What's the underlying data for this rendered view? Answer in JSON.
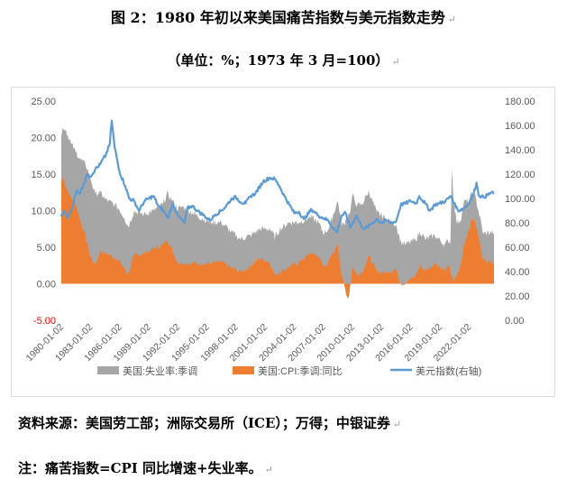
{
  "header": {
    "title": "图 2：1980 年初以来美国痛苦指数与美元指数走势",
    "subtitle": "（单位：%；1973 年 3 月=100）"
  },
  "footer": {
    "source": "资料来源：美国劳工部；洲际交易所（ICE）；万得；中银证券",
    "note": "注：痛苦指数=CPI 同比增速+失业率。"
  },
  "colors": {
    "unemployment": "#a6a6a6",
    "cpi": "#ed7d31",
    "dxy": "#5b9bd5",
    "axis_text": "#595959",
    "negative_label": "#ff0000"
  },
  "chart_data": {
    "type": "area",
    "legend_position": "bottom",
    "grid": false,
    "x_tick_labels": [
      "1980-01-02",
      "1983-01-02",
      "1986-01-02",
      "1989-01-02",
      "1992-01-02",
      "1995-01-02",
      "1998-01-02",
      "2001-01-02",
      "2004-01-02",
      "2007-01-02",
      "2010-01-02",
      "2013-01-02",
      "2016-01-02",
      "2019-01-02",
      "2022-01-02"
    ],
    "x_range": [
      1980.0,
      2024.6
    ],
    "y_left": {
      "min": -5,
      "max": 25,
      "ticks": [
        "-5.00",
        "0.00",
        "5.00",
        "10.00",
        "15.00",
        "20.00",
        "25.00"
      ]
    },
    "y_right": {
      "min": 0,
      "max": 180,
      "ticks": [
        "0.00",
        "20.00",
        "40.00",
        "60.00",
        "80.00",
        "100.00",
        "120.00",
        "140.00",
        "160.00",
        "180.00"
      ]
    },
    "series": [
      {
        "name": "美国:失业率:季调",
        "axis": "left",
        "style": "area",
        "points": [
          [
            1980.0,
            6.3
          ],
          [
            1980.5,
            7.8
          ],
          [
            1981.0,
            7.4
          ],
          [
            1981.5,
            7.2
          ],
          [
            1982.0,
            8.6
          ],
          [
            1982.5,
            9.8
          ],
          [
            1982.9,
            10.8
          ],
          [
            1983.5,
            9.8
          ],
          [
            1984.0,
            8.0
          ],
          [
            1984.5,
            7.4
          ],
          [
            1985.5,
            7.2
          ],
          [
            1986.5,
            6.9
          ],
          [
            1987.5,
            6.0
          ],
          [
            1988.5,
            5.4
          ],
          [
            1989.5,
            5.2
          ],
          [
            1990.5,
            5.6
          ],
          [
            1991.5,
            6.9
          ],
          [
            1992.5,
            7.7
          ],
          [
            1993.5,
            6.9
          ],
          [
            1994.5,
            6.1
          ],
          [
            1995.5,
            5.6
          ],
          [
            1996.5,
            5.4
          ],
          [
            1997.5,
            4.9
          ],
          [
            1998.5,
            4.5
          ],
          [
            1999.5,
            4.2
          ],
          [
            2000.5,
            4.0
          ],
          [
            2001.5,
            4.6
          ],
          [
            2002.5,
            5.8
          ],
          [
            2003.5,
            6.1
          ],
          [
            2004.5,
            5.5
          ],
          [
            2005.5,
            5.0
          ],
          [
            2006.5,
            4.6
          ],
          [
            2007.5,
            4.6
          ],
          [
            2008.5,
            5.8
          ],
          [
            2009.3,
            8.7
          ],
          [
            2009.8,
            10.0
          ],
          [
            2010.5,
            9.5
          ],
          [
            2011.5,
            9.0
          ],
          [
            2012.5,
            8.1
          ],
          [
            2013.5,
            7.4
          ],
          [
            2014.5,
            6.1
          ],
          [
            2015.5,
            5.3
          ],
          [
            2016.5,
            4.9
          ],
          [
            2017.5,
            4.3
          ],
          [
            2018.5,
            3.8
          ],
          [
            2019.5,
            3.6
          ],
          [
            2020.1,
            3.5
          ],
          [
            2020.25,
            14.7
          ],
          [
            2020.5,
            10.2
          ],
          [
            2020.8,
            6.9
          ],
          [
            2021.5,
            5.9
          ],
          [
            2022.0,
            3.9
          ],
          [
            2022.5,
            3.6
          ],
          [
            2023.5,
            3.6
          ],
          [
            2024.6,
            4.0
          ]
        ]
      },
      {
        "name": "美国:CPI:季调:同比",
        "axis": "left",
        "style": "area",
        "points": [
          [
            1980.0,
            13.9
          ],
          [
            1980.2,
            14.6
          ],
          [
            1980.5,
            13.1
          ],
          [
            1981.0,
            11.8
          ],
          [
            1981.5,
            10.8
          ],
          [
            1982.0,
            8.4
          ],
          [
            1982.5,
            6.5
          ],
          [
            1983.0,
            3.7
          ],
          [
            1983.5,
            2.5
          ],
          [
            1984.0,
            4.5
          ],
          [
            1984.5,
            4.2
          ],
          [
            1985.5,
            3.6
          ],
          [
            1986.0,
            3.1
          ],
          [
            1986.9,
            1.3
          ],
          [
            1987.5,
            3.9
          ],
          [
            1988.5,
            4.1
          ],
          [
            1989.5,
            4.8
          ],
          [
            1990.5,
            5.3
          ],
          [
            1990.9,
            6.2
          ],
          [
            1991.5,
            4.4
          ],
          [
            1992.0,
            2.9
          ],
          [
            1993.5,
            2.8
          ],
          [
            1994.5,
            2.8
          ],
          [
            1995.5,
            2.8
          ],
          [
            1996.5,
            3.0
          ],
          [
            1997.5,
            2.2
          ],
          [
            1998.5,
            1.6
          ],
          [
            1999.5,
            2.4
          ],
          [
            2000.5,
            3.5
          ],
          [
            2001.5,
            2.9
          ],
          [
            2002.0,
            1.2
          ],
          [
            2002.5,
            1.6
          ],
          [
            2003.5,
            2.3
          ],
          [
            2004.5,
            2.9
          ],
          [
            2005.7,
            4.2
          ],
          [
            2006.5,
            3.8
          ],
          [
            2007.0,
            2.4
          ],
          [
            2007.5,
            2.8
          ],
          [
            2008.0,
            4.1
          ],
          [
            2008.5,
            5.5
          ],
          [
            2008.9,
            1.0
          ],
          [
            2009.2,
            -0.4
          ],
          [
            2009.5,
            -2.0
          ],
          [
            2009.7,
            -1.3
          ],
          [
            2010.0,
            2.3
          ],
          [
            2010.5,
            1.2
          ],
          [
            2011.0,
            1.6
          ],
          [
            2011.7,
            3.8
          ],
          [
            2012.5,
            1.7
          ],
          [
            2013.5,
            1.5
          ],
          [
            2014.5,
            2.0
          ],
          [
            2015.0,
            0.0
          ],
          [
            2015.5,
            0.1
          ],
          [
            2016.5,
            1.1
          ],
          [
            2017.0,
            2.5
          ],
          [
            2017.5,
            1.8
          ],
          [
            2018.5,
            2.8
          ],
          [
            2019.5,
            1.8
          ],
          [
            2020.0,
            2.4
          ],
          [
            2020.4,
            0.2
          ],
          [
            2020.8,
            1.3
          ],
          [
            2021.2,
            2.6
          ],
          [
            2021.5,
            5.3
          ],
          [
            2021.9,
            7.0
          ],
          [
            2022.4,
            9.0
          ],
          [
            2022.7,
            8.2
          ],
          [
            2023.0,
            6.4
          ],
          [
            2023.5,
            3.2
          ],
          [
            2024.0,
            3.2
          ],
          [
            2024.6,
            3.0
          ]
        ]
      },
      {
        "name": "美元指数(右轴)",
        "axis": "right",
        "style": "line",
        "points": [
          [
            1980.0,
            85
          ],
          [
            1980.3,
            90
          ],
          [
            1980.6,
            84
          ],
          [
            1980.9,
            88
          ],
          [
            1981.2,
            95
          ],
          [
            1981.6,
            107
          ],
          [
            1981.9,
            104
          ],
          [
            1982.3,
            112
          ],
          [
            1982.7,
            120
          ],
          [
            1983.0,
            118
          ],
          [
            1983.5,
            124
          ],
          [
            1984.0,
            128
          ],
          [
            1984.6,
            136
          ],
          [
            1985.0,
            145
          ],
          [
            1985.2,
            164
          ],
          [
            1985.5,
            142
          ],
          [
            1986.0,
            122
          ],
          [
            1986.6,
            110
          ],
          [
            1987.0,
            100
          ],
          [
            1987.5,
            98
          ],
          [
            1988.0,
            90
          ],
          [
            1988.6,
            98
          ],
          [
            1989.0,
            100
          ],
          [
            1989.5,
            102
          ],
          [
            1990.0,
            94
          ],
          [
            1990.5,
            90
          ],
          [
            1991.0,
            84
          ],
          [
            1991.5,
            96
          ],
          [
            1992.0,
            86
          ],
          [
            1992.7,
            80
          ],
          [
            1993.0,
            92
          ],
          [
            1993.5,
            94
          ],
          [
            1994.0,
            90
          ],
          [
            1994.7,
            86
          ],
          [
            1995.3,
            82
          ],
          [
            1995.9,
            87
          ],
          [
            1996.5,
            90
          ],
          [
            1997.0,
            94
          ],
          [
            1997.6,
            100
          ],
          [
            1998.0,
            101
          ],
          [
            1998.5,
            97
          ],
          [
            1999.0,
            96
          ],
          [
            1999.5,
            102
          ],
          [
            2000.0,
            104
          ],
          [
            2000.8,
            114
          ],
          [
            2001.5,
            117
          ],
          [
            2002.0,
            116
          ],
          [
            2002.5,
            110
          ],
          [
            2003.0,
            102
          ],
          [
            2003.5,
            95
          ],
          [
            2004.0,
            88
          ],
          [
            2004.5,
            89
          ],
          [
            2005.0,
            83
          ],
          [
            2005.8,
            91
          ],
          [
            2006.5,
            86
          ],
          [
            2007.0,
            84
          ],
          [
            2007.5,
            82
          ],
          [
            2008.0,
            76
          ],
          [
            2008.4,
            72
          ],
          [
            2008.9,
            86
          ],
          [
            2009.3,
            88
          ],
          [
            2009.8,
            76
          ],
          [
            2010.4,
            86
          ],
          [
            2010.9,
            78
          ],
          [
            2011.3,
            75
          ],
          [
            2011.8,
            78
          ],
          [
            2012.5,
            83
          ],
          [
            2013.0,
            80
          ],
          [
            2013.5,
            82
          ],
          [
            2014.0,
            80
          ],
          [
            2014.5,
            81
          ],
          [
            2015.0,
            95
          ],
          [
            2015.5,
            96
          ],
          [
            2016.0,
            98
          ],
          [
            2016.6,
            96
          ],
          [
            2016.9,
            102
          ],
          [
            2017.5,
            96
          ],
          [
            2018.0,
            90
          ],
          [
            2018.5,
            95
          ],
          [
            2019.0,
            96
          ],
          [
            2019.6,
            98
          ],
          [
            2020.2,
            102
          ],
          [
            2020.5,
            96
          ],
          [
            2020.9,
            90
          ],
          [
            2021.5,
            92
          ],
          [
            2022.0,
            96
          ],
          [
            2022.5,
            104
          ],
          [
            2022.8,
            113
          ],
          [
            2023.0,
            103
          ],
          [
            2023.5,
            101
          ],
          [
            2024.0,
            103
          ],
          [
            2024.3,
            105
          ],
          [
            2024.6,
            104
          ]
        ]
      }
    ]
  }
}
